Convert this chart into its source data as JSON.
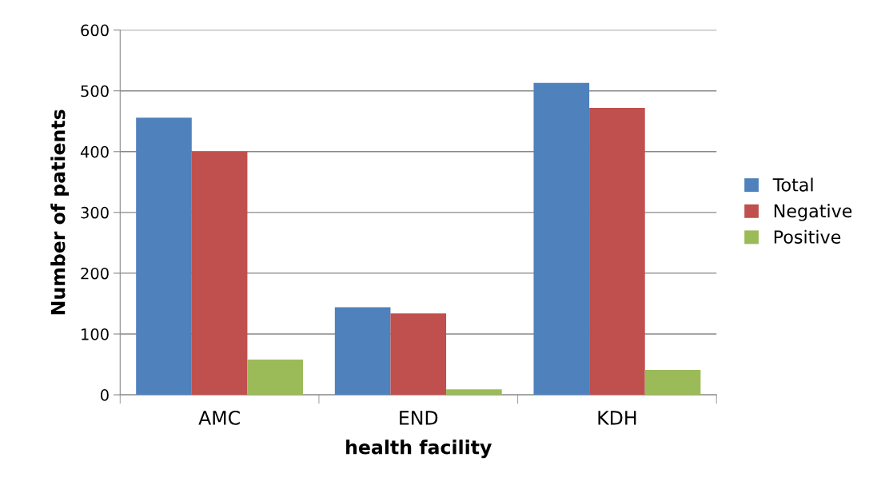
{
  "chart_data": {
    "type": "bar",
    "xlabel": "health facility",
    "ylabel": "Number of patients",
    "categories": [
      "AMC",
      "END",
      "KDH"
    ],
    "series": [
      {
        "name": "Total",
        "color": "#4f81bd",
        "values": [
          456,
          144,
          513
        ]
      },
      {
        "name": "Negative",
        "color": "#c0504d",
        "values": [
          400,
          134,
          472
        ]
      },
      {
        "name": "Positive",
        "color": "#9bbb59",
        "values": [
          58,
          9,
          41
        ]
      }
    ],
    "ylim": [
      0,
      600
    ],
    "yticks": [
      0,
      100,
      200,
      300,
      400,
      500,
      600
    ],
    "grid": "y",
    "legend": "right"
  }
}
